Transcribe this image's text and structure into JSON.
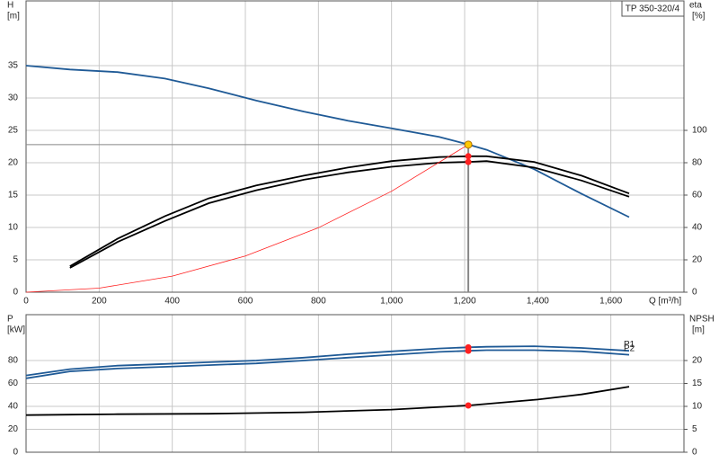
{
  "chart_data": [
    {
      "type": "line",
      "title": "TP 350-320/4",
      "ylabel": "H",
      "yunit": "[m]",
      "y2label": "eta",
      "y2unit": "[%]",
      "xlabel": "Q [m³/h]",
      "xlim": [
        0,
        1800
      ],
      "xticks": [
        0,
        200,
        400,
        600,
        800,
        {
          "value": 1000,
          "label": "1,000"
        },
        {
          "value": 1200,
          "label": "1,200"
        },
        {
          "value": 1400,
          "label": "1,400"
        },
        {
          "value": 1600,
          "label": "1,600"
        }
      ],
      "ylim": [
        0,
        45
      ],
      "yticks": [
        0,
        5,
        10,
        15,
        20,
        25,
        30,
        35
      ],
      "y2lim": [
        0,
        180
      ],
      "y2ticks": [
        0,
        20,
        40,
        60,
        80,
        100
      ],
      "grid": true,
      "series": [
        {
          "color": "#1f5a96",
          "x": [
            0,
            120,
            250,
            380,
            500,
            630,
            760,
            880,
            1000,
            1130,
            1210,
            1260,
            1390,
            1520,
            1650
          ],
          "values": [
            35,
            34.4,
            34,
            33,
            31.5,
            29.6,
            27.9,
            26.5,
            25.3,
            24,
            22.8,
            22,
            19,
            15.2,
            11.6
          ]
        },
        {
          "color": "#000000",
          "axis": "y2",
          "x": [
            120,
            250,
            380,
            500,
            630,
            760,
            880,
            1000,
            1130,
            1210,
            1260,
            1390,
            1520,
            1650
          ],
          "values": [
            16,
            33,
            47,
            58,
            66,
            72,
            77,
            81,
            83.5,
            84,
            84,
            80.5,
            72,
            61
          ]
        },
        {
          "color": "#000000",
          "axis": "y2",
          "x": [
            120,
            250,
            380,
            500,
            630,
            760,
            880,
            1000,
            1130,
            1210,
            1260,
            1390,
            1520,
            1650
          ],
          "values": [
            15,
            31,
            44,
            55,
            63,
            69.5,
            74,
            77.5,
            80,
            80.5,
            81,
            77,
            69,
            59
          ]
        },
        {
          "color": "#ff2020",
          "x": [
            0,
            200,
            400,
            600,
            800,
            1000,
            1210
          ],
          "values": [
            0,
            0.62,
            2.49,
            5.6,
            9.96,
            15.6,
            22.8
          ]
        }
      ],
      "duty_point": {
        "x": 1210,
        "y": 22.8,
        "color": "#ffc800"
      },
      "points": [
        {
          "x": 1210,
          "y": 84,
          "axis": "y2",
          "color": "#ff2020"
        },
        {
          "x": 1210,
          "y": 80.5,
          "axis": "y2",
          "color": "#ff2020"
        }
      ]
    },
    {
      "type": "line",
      "ylabel": "P",
      "yunit": "[kW]",
      "y2label": "NPSH",
      "y2unit": "[m]",
      "ylim": [
        0,
        120
      ],
      "yticks": [
        0,
        20,
        40,
        60,
        80
      ],
      "y2lim": [
        0,
        30
      ],
      "y2ticks": [
        0,
        5,
        10,
        15,
        20
      ],
      "grid": true,
      "series": [
        {
          "name": "P1",
          "color": "#1f5a96",
          "x": [
            0,
            120,
            250,
            380,
            500,
            630,
            760,
            880,
            1000,
            1130,
            1210,
            1260,
            1390,
            1520,
            1650
          ],
          "values": [
            67,
            72.5,
            75.5,
            77,
            78.5,
            80,
            82.5,
            85.5,
            88,
            90.5,
            91.5,
            92,
            92.5,
            91,
            88.5
          ]
        },
        {
          "name": "P2",
          "color": "#1f5a96",
          "x": [
            0,
            120,
            250,
            380,
            500,
            630,
            760,
            880,
            1000,
            1130,
            1210,
            1260,
            1390,
            1520,
            1650
          ],
          "values": [
            64.5,
            70.5,
            73,
            74.5,
            76,
            77.5,
            80,
            82.5,
            85,
            87.5,
            88.5,
            89,
            89,
            88,
            85
          ]
        },
        {
          "color": "#000000",
          "axis": "y2",
          "x": [
            0,
            120,
            250,
            500,
            760,
            1000,
            1210,
            1400,
            1520,
            1650
          ],
          "values": [
            8.1,
            8.2,
            8.3,
            8.4,
            8.7,
            9.3,
            10.2,
            11.5,
            12.6,
            14.3
          ]
        }
      ],
      "points": [
        {
          "x": 1210,
          "y": 91.5,
          "color": "#ff2020"
        },
        {
          "x": 1210,
          "y": 88.5,
          "color": "#ff2020"
        },
        {
          "x": 1210,
          "y": 10.2,
          "axis": "y2",
          "color": "#ff2020"
        }
      ]
    }
  ]
}
